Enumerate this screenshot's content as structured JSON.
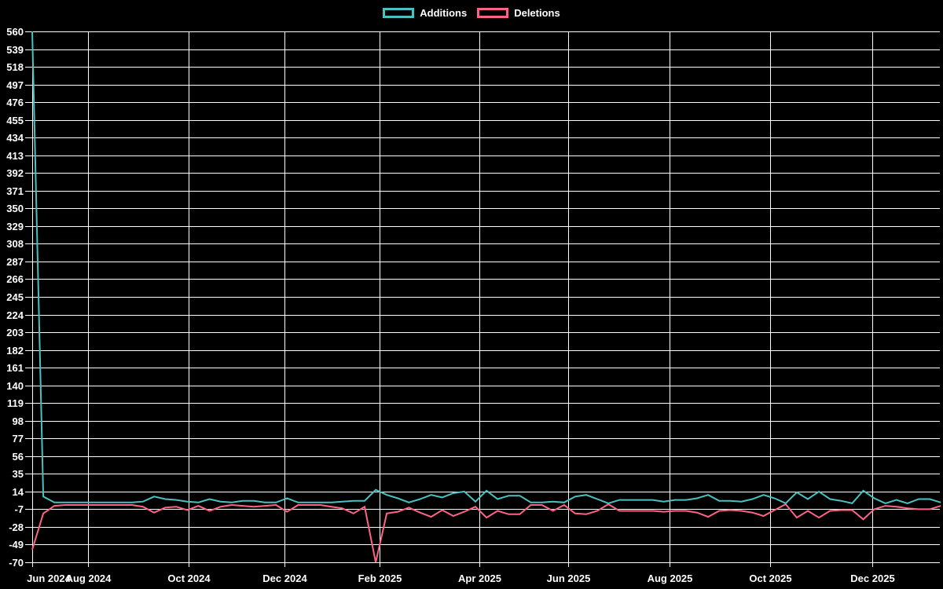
{
  "chart_data": {
    "type": "line",
    "title": "",
    "legend_position": "top",
    "grid": true,
    "background_color": "#000000",
    "grid_color": "#ffffff",
    "text_color": "#ffffff",
    "ylim": [
      -70,
      560
    ],
    "y_tick_step": 21,
    "y_ticks": [
      560,
      539,
      518,
      497,
      476,
      455,
      434,
      413,
      392,
      371,
      350,
      329,
      308,
      287,
      266,
      245,
      224,
      203,
      182,
      161,
      140,
      119,
      98,
      77,
      56,
      35,
      14,
      -7,
      -28,
      -49,
      -70
    ],
    "x_start_date": "2024-06-27",
    "x_interval": "weekly",
    "x_ticks": [
      {
        "label": "Jun 2024",
        "week": 0
      },
      {
        "label": "Aug 2024",
        "week": 5.03
      },
      {
        "label": "Oct 2024",
        "week": 14.11
      },
      {
        "label": "Dec 2024",
        "week": 22.77
      },
      {
        "label": "Feb 2025",
        "week": 31.35
      },
      {
        "label": "Apr 2025",
        "week": 40.35
      },
      {
        "label": "Jun 2025",
        "week": 48.37
      },
      {
        "label": "Aug 2025",
        "week": 57.52
      },
      {
        "label": "Oct 2025",
        "week": 66.6
      },
      {
        "label": "Dec 2025",
        "week": 75.82
      }
    ],
    "series": [
      {
        "name": "Additions",
        "color": "#4bc0c0",
        "values": [
          560,
          8,
          1,
          1,
          1,
          1,
          1,
          1,
          1,
          1,
          2,
          8,
          5,
          4,
          2,
          1,
          5,
          2,
          1,
          3,
          3,
          1,
          1,
          6,
          1,
          1,
          1,
          1,
          2,
          3,
          3,
          16,
          10,
          6,
          1,
          5,
          10,
          7,
          12,
          14,
          2,
          15,
          5,
          9,
          9,
          1,
          1,
          2,
          1,
          8,
          10,
          5,
          0,
          4,
          4,
          4,
          4,
          2,
          4,
          4,
          6,
          10,
          3,
          3,
          2,
          5,
          10,
          6,
          0,
          13,
          5,
          14,
          5,
          3,
          0,
          15,
          6,
          0,
          4,
          0,
          5,
          5,
          1
        ]
      },
      {
        "name": "Deletions",
        "color": "#ff6384",
        "values": [
          -55,
          -12,
          -3,
          -2,
          -2,
          -2,
          -2,
          -2,
          -2,
          -2,
          -4,
          -11,
          -5,
          -4,
          -8,
          -3,
          -9,
          -4,
          -2,
          -3,
          -4,
          -3,
          -2,
          -10,
          -2,
          -2,
          -2,
          -4,
          -6,
          -12,
          -4,
          -70,
          -12,
          -10,
          -5,
          -11,
          -16,
          -8,
          -15,
          -10,
          -4,
          -17,
          -9,
          -13,
          -13,
          -2,
          -2,
          -9,
          -2,
          -12,
          -13,
          -9,
          -1,
          -9,
          -9,
          -9,
          -9,
          -10,
          -9,
          -9,
          -11,
          -16,
          -9,
          -8,
          -9,
          -11,
          -15,
          -8,
          -1,
          -17,
          -9,
          -17,
          -9,
          -8,
          -8,
          -19,
          -7,
          -3,
          -4,
          -6,
          -7,
          -7,
          -3
        ]
      }
    ]
  }
}
